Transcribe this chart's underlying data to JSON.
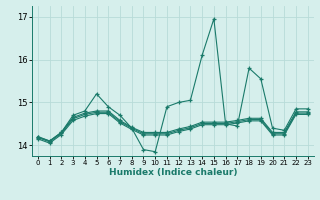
{
  "title": "",
  "xlabel": "Humidex (Indice chaleur)",
  "bg_color": "#d6efec",
  "line_color": "#1a7a6a",
  "grid_color": "#b8dbd8",
  "xlim": [
    -0.5,
    23.5
  ],
  "ylim": [
    13.75,
    17.25
  ],
  "yticks": [
    14,
    15,
    16,
    17
  ],
  "xticks": [
    0,
    1,
    2,
    3,
    4,
    5,
    6,
    7,
    8,
    9,
    10,
    11,
    12,
    13,
    14,
    15,
    16,
    17,
    18,
    19,
    20,
    21,
    22,
    23
  ],
  "x_values": [
    0,
    1,
    2,
    3,
    4,
    5,
    6,
    7,
    8,
    9,
    10,
    11,
    12,
    13,
    14,
    15,
    16,
    17,
    18,
    19,
    20,
    21,
    22,
    23
  ],
  "main_series": [
    14.2,
    14.1,
    14.3,
    14.7,
    14.8,
    15.2,
    14.9,
    14.7,
    14.4,
    13.9,
    13.85,
    14.9,
    15.0,
    15.05,
    16.1,
    16.95,
    14.5,
    14.45,
    15.8,
    15.55,
    14.4,
    14.35,
    14.85,
    14.85
  ],
  "flat1": [
    14.2,
    14.1,
    14.3,
    14.65,
    14.75,
    14.8,
    14.8,
    14.58,
    14.42,
    14.3,
    14.3,
    14.3,
    14.38,
    14.44,
    14.54,
    14.54,
    14.54,
    14.58,
    14.63,
    14.63,
    14.3,
    14.3,
    14.78,
    14.78
  ],
  "flat2": [
    14.18,
    14.08,
    14.28,
    14.62,
    14.72,
    14.77,
    14.77,
    14.55,
    14.4,
    14.27,
    14.27,
    14.27,
    14.35,
    14.41,
    14.51,
    14.51,
    14.51,
    14.55,
    14.6,
    14.6,
    14.27,
    14.27,
    14.75,
    14.75
  ],
  "flat3": [
    14.15,
    14.05,
    14.25,
    14.58,
    14.68,
    14.74,
    14.74,
    14.52,
    14.37,
    14.24,
    14.24,
    14.24,
    14.32,
    14.38,
    14.48,
    14.48,
    14.48,
    14.52,
    14.57,
    14.57,
    14.24,
    14.24,
    14.72,
    14.72
  ]
}
